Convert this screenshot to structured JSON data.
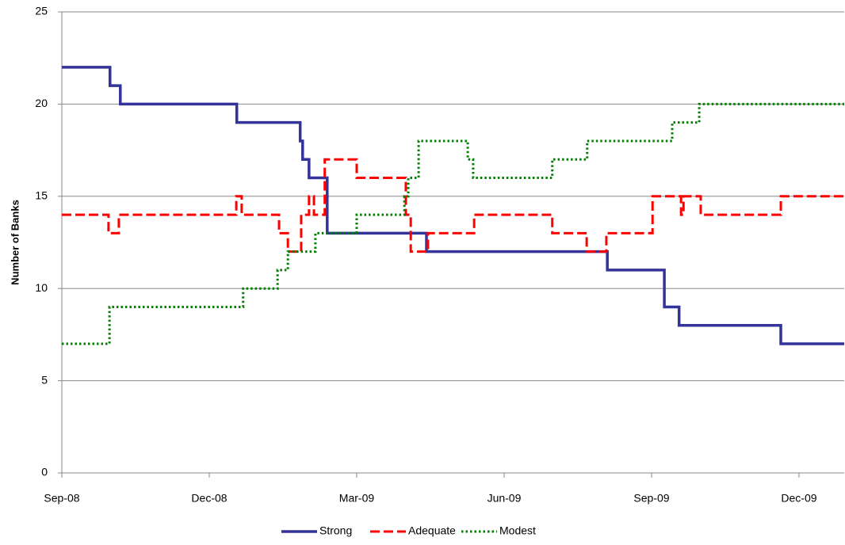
{
  "chart_data": {
    "type": "line",
    "step": true,
    "y_label": "Number of Banks",
    "xlim": [
      0,
      15.92
    ],
    "xticks": [
      {
        "value": 0,
        "label": "Sep-08"
      },
      {
        "value": 3,
        "label": "Dec-08"
      },
      {
        "value": 6,
        "label": "Mar-09"
      },
      {
        "value": 9,
        "label": "Jun-09"
      },
      {
        "value": 12,
        "label": "Sep-09"
      },
      {
        "value": 15,
        "label": "Dec-09"
      }
    ],
    "ylim": [
      0,
      25
    ],
    "yticks": [
      0,
      5,
      10,
      15,
      20,
      25
    ],
    "grid": true,
    "legend": "bottom",
    "series": [
      {
        "name": "Strong",
        "color": "#333399",
        "style": "solid",
        "x": [
          0,
          0.98,
          1.19,
          3.56,
          4.85,
          4.9,
          5.03,
          5.4,
          7.42,
          11.1,
          12.26,
          12.56,
          14.63,
          15.92
        ],
        "values": [
          22,
          21,
          20,
          19,
          18,
          17,
          16,
          13,
          12,
          11,
          9,
          8,
          7,
          7
        ]
      },
      {
        "name": "Adequate",
        "color": "#ff0000",
        "style": "dashed",
        "x": [
          0,
          0.95,
          1.16,
          3.55,
          3.66,
          4.42,
          4.6,
          4.87,
          5.03,
          5.13,
          5.35,
          6.0,
          7.0,
          7.1,
          7.45,
          8.39,
          9.98,
          10.68,
          11.08,
          12.02,
          12.6,
          12.65,
          13.0,
          14.63,
          15.92
        ],
        "values": [
          14,
          13,
          14,
          15,
          14,
          13,
          12,
          14,
          15,
          14,
          17,
          16,
          14,
          12,
          13,
          14,
          13,
          12,
          13,
          15,
          14,
          15,
          14,
          15,
          15
        ]
      },
      {
        "name": "Modest",
        "color": "#008000",
        "style": "dotted",
        "x": [
          0,
          0.97,
          3.69,
          4.39,
          4.6,
          5.16,
          6.0,
          6.97,
          7.05,
          7.26,
          8.26,
          8.37,
          9.98,
          10.69,
          12.42,
          12.97,
          15.92
        ],
        "values": [
          7,
          9,
          10,
          11,
          12,
          13,
          14,
          15,
          16,
          18,
          17,
          16,
          17,
          18,
          19,
          20,
          20
        ]
      }
    ]
  }
}
